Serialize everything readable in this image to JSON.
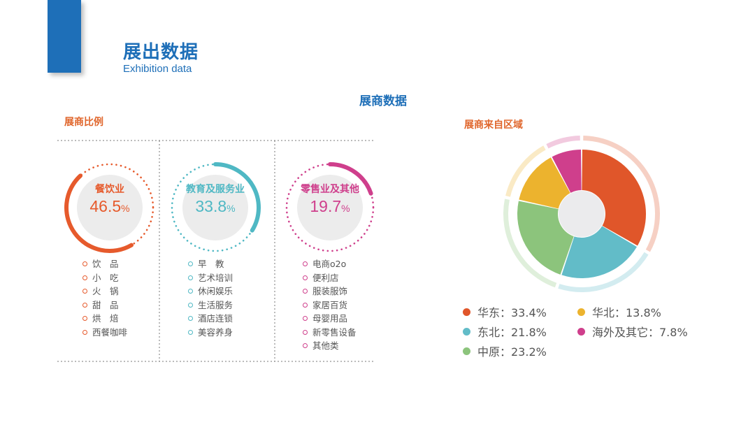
{
  "header": {
    "title": "展出数据",
    "subtitle": "Exhibition data"
  },
  "section_title": "展商数据",
  "left_heading": "展商比例",
  "right_heading": "展商来自区域",
  "colors": {
    "blue": "#1e6fb8",
    "orange": "#e0662c",
    "teal": "#4fb8c4",
    "magenta": "#cf3f8c",
    "yellow": "#ecb32e",
    "green": "#8cc47c",
    "pink": "#cf3f8c"
  },
  "categories": [
    {
      "label": "餐饮业",
      "value": "46.5",
      "unit": "%",
      "color": "#e65a2c",
      "items": [
        "饮　品",
        "小　吃",
        "火　锅",
        "甜　品",
        "烘　焙",
        "西餐咖啡"
      ]
    },
    {
      "label": "教育及服务业",
      "value": "33.8",
      "unit": "%",
      "color": "#4fb8c4",
      "items": [
        "早　教",
        "艺术培训",
        "休闲娱乐",
        "生活服务",
        "酒店连锁",
        "美容养身"
      ]
    },
    {
      "label": "零售业及其他",
      "value": "19.7",
      "unit": "%",
      "color": "#cf3f8c",
      "items": [
        "电商o2o",
        "便利店",
        "服装服饰",
        "家居百货",
        "母婴用品",
        "新零售设备",
        "其他类"
      ]
    }
  ],
  "chart_data": {
    "type": "pie",
    "title": "展商来自区域",
    "categories": [
      "华东",
      "东北",
      "中原",
      "华北",
      "海外及其它"
    ],
    "values": [
      33.4,
      21.8,
      23.2,
      13.8,
      7.8
    ],
    "colors": [
      "#e0562a",
      "#62bcc8",
      "#8cc47c",
      "#ecb32e",
      "#cf3f8c"
    ],
    "labels": [
      "华东：33.4%",
      "东北：21.8%",
      "中原：23.2%",
      "华北：13.8%",
      "海外及其它：7.8%"
    ]
  }
}
